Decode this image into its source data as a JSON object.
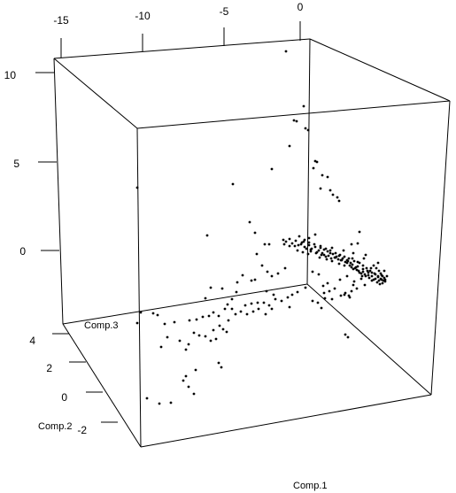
{
  "chart_data": {
    "type": "scatter",
    "projection": "3d",
    "title": "",
    "axes": {
      "x": {
        "label": "Comp.1",
        "ticks": [
          "-15",
          "-10",
          "-5",
          "0"
        ],
        "tick_values": [
          -15,
          -10,
          -5,
          0
        ]
      },
      "y": {
        "label": "Comp.2",
        "ticks": [
          "4",
          "2",
          "0",
          "-2"
        ],
        "tick_values": [
          4,
          2,
          0,
          -2
        ]
      },
      "z": {
        "label": "Comp.3",
        "ticks": [
          "10",
          "5",
          "0"
        ],
        "tick_values": [
          10,
          5,
          0
        ]
      }
    },
    "point_color": "#000000",
    "box_color": "#000000",
    "background": "#ffffff",
    "points_2d_projection": [
      [
        323,
        58
      ],
      [
        343,
        120
      ],
      [
        332,
        136
      ],
      [
        335,
        137
      ],
      [
        345,
        145
      ],
      [
        348,
        147
      ],
      [
        327,
        165
      ],
      [
        356,
        182
      ],
      [
        358,
        183
      ],
      [
        354,
        190
      ],
      [
        364,
        198
      ],
      [
        370,
        200
      ],
      [
        307,
        191
      ],
      [
        362,
        213
      ],
      [
        373,
        215
      ],
      [
        376,
        220
      ],
      [
        381,
        223
      ],
      [
        383,
        227
      ],
      [
        263,
        208
      ],
      [
        155,
        212
      ],
      [
        234,
        266
      ],
      [
        282,
        251
      ],
      [
        288,
        263
      ],
      [
        299,
        276
      ],
      [
        290,
        287
      ],
      [
        304,
        276
      ],
      [
        320,
        271
      ],
      [
        323,
        273
      ],
      [
        330,
        275
      ],
      [
        337,
        277
      ],
      [
        344,
        279
      ],
      [
        351,
        282
      ],
      [
        358,
        285
      ],
      [
        364,
        286
      ],
      [
        371,
        289
      ],
      [
        378,
        291
      ],
      [
        385,
        294
      ],
      [
        392,
        297
      ],
      [
        398,
        299
      ],
      [
        404,
        301
      ],
      [
        410,
        304
      ],
      [
        415,
        306
      ],
      [
        420,
        308
      ],
      [
        424,
        310
      ],
      [
        427,
        313
      ],
      [
        430,
        315
      ],
      [
        433,
        317
      ],
      [
        431,
        311
      ],
      [
        428,
        306
      ],
      [
        425,
        303
      ],
      [
        422,
        300
      ],
      [
        419,
        303
      ],
      [
        416,
        308
      ],
      [
        412,
        310
      ],
      [
        409,
        312
      ],
      [
        405,
        306
      ],
      [
        402,
        302
      ],
      [
        399,
        304
      ],
      [
        396,
        297
      ],
      [
        393,
        295
      ],
      [
        387,
        292
      ],
      [
        383,
        289
      ],
      [
        380,
        290
      ],
      [
        376,
        287
      ],
      [
        373,
        286
      ],
      [
        370,
        284
      ],
      [
        366,
        282
      ],
      [
        362,
        280
      ],
      [
        356,
        279
      ],
      [
        349,
        277
      ],
      [
        341,
        274
      ],
      [
        334,
        272
      ],
      [
        327,
        270
      ],
      [
        338,
        267
      ],
      [
        344,
        271
      ],
      [
        352,
        281
      ],
      [
        360,
        283
      ],
      [
        366,
        288
      ],
      [
        430,
        309
      ],
      [
        432,
        312
      ],
      [
        434,
        314
      ],
      [
        435,
        316
      ],
      [
        428,
        317
      ],
      [
        424,
        315
      ],
      [
        420,
        312
      ],
      [
        417,
        314
      ],
      [
        413,
        312
      ],
      [
        408,
        309
      ],
      [
        406,
        308
      ],
      [
        401,
        303
      ],
      [
        395,
        300
      ],
      [
        390,
        296
      ],
      [
        386,
        294
      ],
      [
        382,
        293
      ],
      [
        379,
        291
      ],
      [
        374,
        292
      ],
      [
        368,
        290
      ],
      [
        363,
        288
      ],
      [
        357,
        286
      ],
      [
        351,
        284
      ],
      [
        346,
        281
      ],
      [
        340,
        276
      ],
      [
        333,
        278
      ],
      [
        327,
        278
      ],
      [
        321,
        276
      ],
      [
        336,
        283
      ],
      [
        342,
        285
      ],
      [
        348,
        287
      ],
      [
        361,
        291
      ],
      [
        369,
        293
      ],
      [
        375,
        295
      ],
      [
        383,
        298
      ],
      [
        389,
        300
      ],
      [
        397,
        302
      ],
      [
        403,
        305
      ],
      [
        410,
        307
      ],
      [
        416,
        311
      ],
      [
        422,
        316
      ],
      [
        426,
        319
      ],
      [
        429,
        321
      ],
      [
        432,
        320
      ],
      [
        435,
        318
      ],
      [
        431,
        316
      ],
      [
        427,
        312
      ],
      [
        423,
        309
      ],
      [
        418,
        306
      ],
      [
        414,
        303
      ],
      [
        410,
        300
      ],
      [
        406,
        297
      ],
      [
        400,
        295
      ],
      [
        394,
        292
      ],
      [
        389,
        290
      ],
      [
        384,
        288
      ],
      [
        379,
        286
      ],
      [
        373,
        283
      ],
      [
        368,
        281
      ],
      [
        362,
        278
      ],
      [
        355,
        276
      ],
      [
        349,
        274
      ],
      [
        343,
        273
      ],
      [
        406,
        262
      ],
      [
        404,
        275
      ],
      [
        413,
        288
      ],
      [
        397,
        276
      ],
      [
        411,
        292
      ],
      [
        356,
        265
      ],
      [
        349,
        269
      ],
      [
        375,
        280
      ],
      [
        388,
        283
      ],
      [
        399,
        286
      ],
      [
        404,
        296
      ],
      [
        427,
        297
      ],
      [
        437,
        312
      ],
      [
        434,
        306
      ],
      [
        392,
        294
      ],
      [
        398,
        292
      ],
      [
        420,
        317
      ],
      [
        412,
        322
      ],
      [
        403,
        326
      ],
      [
        397,
        329
      ],
      [
        390,
        331
      ],
      [
        385,
        334
      ],
      [
        378,
        326
      ],
      [
        370,
        320
      ],
      [
        365,
        323
      ],
      [
        360,
        310
      ],
      [
        353,
        307
      ],
      [
        392,
        312
      ],
      [
        384,
        316
      ],
      [
        400,
        318
      ],
      [
        408,
        315
      ],
      [
        394,
        334
      ],
      [
        389,
        333
      ],
      [
        399,
        322
      ],
      [
        372,
        329
      ],
      [
        366,
        331
      ],
      [
        375,
        338
      ],
      [
        367,
        337
      ],
      [
        363,
        348
      ],
      [
        359,
        342
      ],
      [
        353,
        340
      ],
      [
        345,
        325
      ],
      [
        336,
        330
      ],
      [
        330,
        333
      ],
      [
        325,
        336
      ],
      [
        322,
        303
      ],
      [
        314,
        309
      ],
      [
        307,
        312
      ],
      [
        302,
        307
      ],
      [
        296,
        300
      ],
      [
        288,
        316
      ],
      [
        284,
        317
      ],
      [
        274,
        311
      ],
      [
        268,
        319
      ],
      [
        251,
        326
      ],
      [
        238,
        325
      ],
      [
        232,
        337
      ],
      [
        267,
        330
      ],
      [
        262,
        338
      ],
      [
        257,
        344
      ],
      [
        277,
        345
      ],
      [
        284,
        343
      ],
      [
        291,
        342
      ],
      [
        298,
        342
      ],
      [
        304,
        345
      ],
      [
        311,
        338
      ],
      [
        307,
        349
      ],
      [
        300,
        355
      ],
      [
        292,
        349
      ],
      [
        286,
        352
      ],
      [
        279,
        355
      ],
      [
        272,
        352
      ],
      [
        266,
        355
      ],
      [
        262,
        349
      ],
      [
        254,
        349
      ],
      [
        247,
        357
      ],
      [
        241,
        353
      ],
      [
        236,
        357
      ],
      [
        229,
        358
      ],
      [
        222,
        361
      ],
      [
        214,
        362
      ],
      [
        197,
        364
      ],
      [
        186,
        366
      ],
      [
        178,
        356
      ],
      [
        173,
        354
      ],
      [
        159,
        353
      ],
      [
        155,
        365
      ],
      [
        189,
        381
      ],
      [
        182,
        392
      ],
      [
        210,
        395
      ],
      [
        203,
        385
      ],
      [
        213,
        389
      ],
      [
        219,
        376
      ],
      [
        225,
        379
      ],
      [
        232,
        380
      ],
      [
        238,
        385
      ],
      [
        244,
        383
      ],
      [
        241,
        373
      ],
      [
        248,
        368
      ],
      [
        252,
        372
      ],
      [
        256,
        375
      ],
      [
        258,
        362
      ],
      [
        247,
        410
      ],
      [
        250,
        415
      ],
      [
        221,
        418
      ],
      [
        210,
        425
      ],
      [
        207,
        430
      ],
      [
        213,
        437
      ],
      [
        219,
        445
      ],
      [
        193,
        455
      ],
      [
        180,
        456
      ],
      [
        166,
        450
      ],
      [
        390,
        378
      ],
      [
        393,
        381
      ],
      [
        395,
        336
      ],
      [
        327,
        347
      ],
      [
        318,
        340
      ],
      [
        309,
        333
      ],
      [
        301,
        329
      ]
    ]
  }
}
